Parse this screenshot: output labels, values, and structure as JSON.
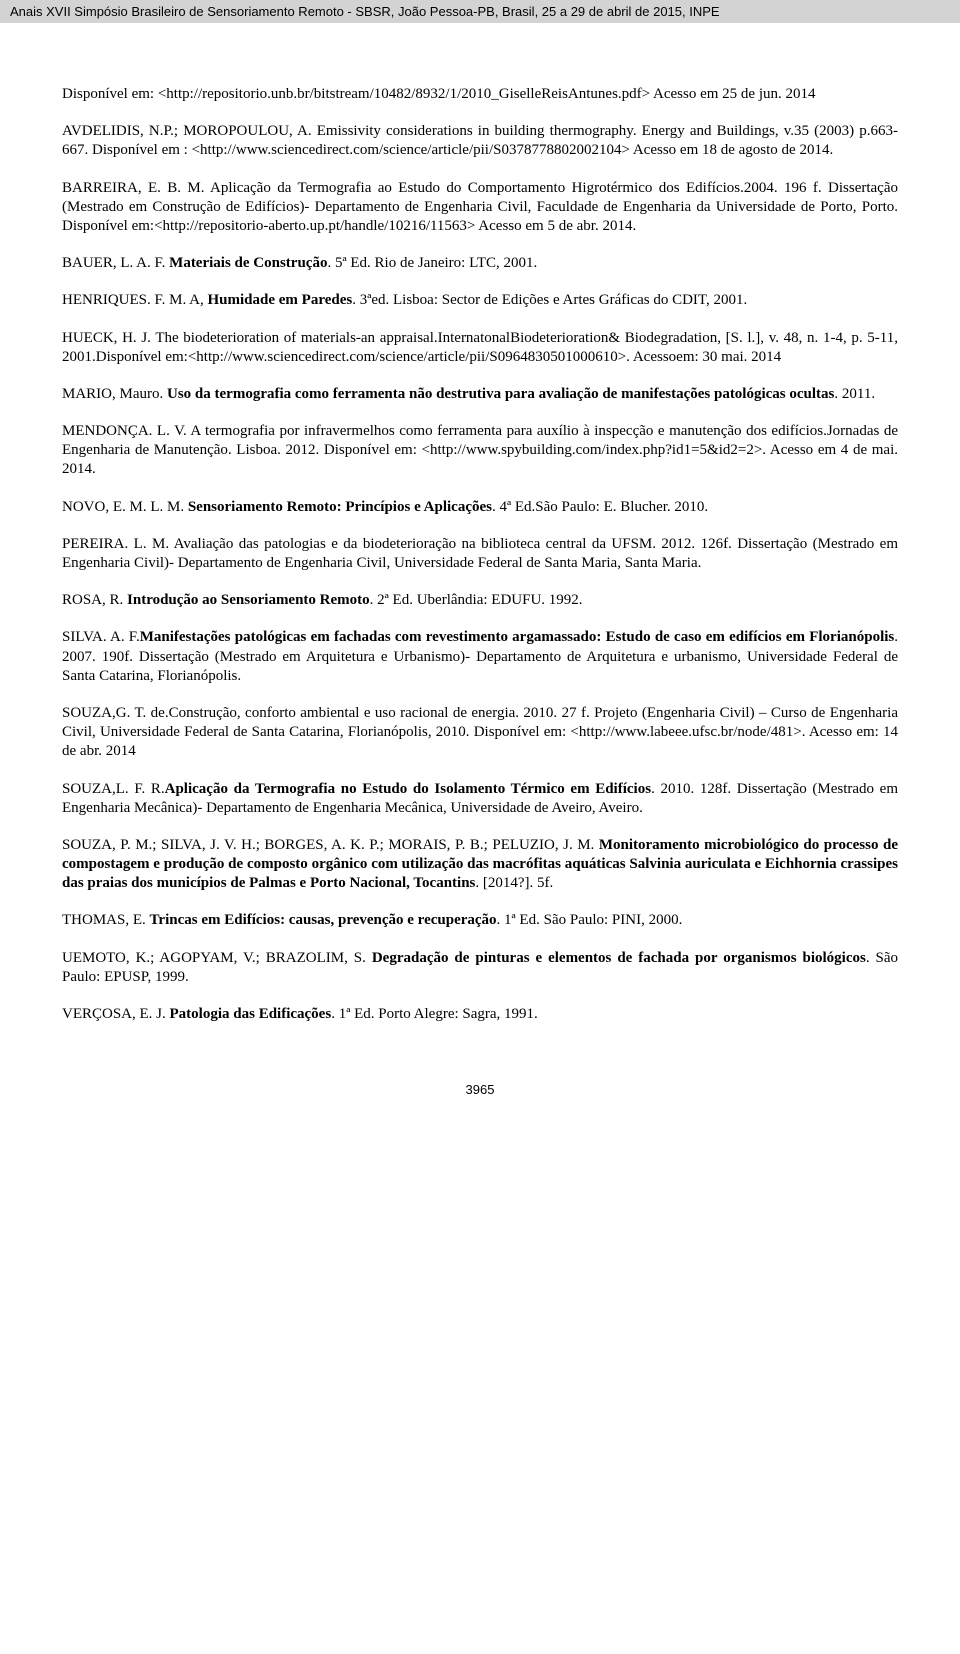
{
  "header": {
    "text": "Anais XVII Simpósio Brasileiro de Sensoriamento Remoto - SBSR, João Pessoa-PB, Brasil, 25 a 29 de abril de 2015, INPE"
  },
  "refs": {
    "r1": {
      "a": "Disponível em: <http://repositorio.unb.br/bitstream/10482/8932/1/2010_GiselleReisAntunes.pdf> Acesso em 25 de jun. 2014"
    },
    "r2": {
      "a": "AVDELIDIS, N.P.; MOROPOULOU, A. Emissivity considerations in building thermography. Energy and Buildings, v.35 (2003) p.663-667. Disponível em : <http://www.sciencedirect.com/science/article/pii/S0378778802002104> Acesso em 18 de agosto de 2014."
    },
    "r3": {
      "a": "BARREIRA, E. B. M. Aplicação da Termografia ao Estudo do Comportamento Higrotérmico dos Edifícios.2004. 196 f. Dissertação (Mestrado em Construção de Edifícios)- Departamento de Engenharia Civil, Faculdade de Engenharia da Universidade de Porto, Porto. Disponível em:<http://repositorio-aberto.up.pt/handle/10216/11563> Acesso em 5 de abr. 2014."
    },
    "r4": {
      "a": "BAUER, L. A. F. ",
      "b": "Materiais de Construção",
      "c": ". 5ª Ed. Rio de Janeiro: LTC, 2001."
    },
    "r5": {
      "a": "HENRIQUES. F. M. A, ",
      "b": "Humidade em Paredes",
      "c": ". 3ªed. Lisboa: Sector de Edições e Artes Gráficas do CDIT, 2001."
    },
    "r6": {
      "a": "HUECK, H. J. The biodeterioration of materials-an appraisal.InternatonalBiodeterioration& Biodegradation, [S. l.], v. 48, n. 1-4, p. 5-11, 2001.Disponível em:<http://www.sciencedirect.com/science/article/pii/S0964830501000610>. Acessoem: 30 mai. 2014"
    },
    "r7": {
      "a": "MARIO, Mauro. ",
      "b": "Uso da termografia como ferramenta não destrutiva para avaliação de manifestações patológicas ocultas",
      "c": ". 2011."
    },
    "r8": {
      "a": "MENDONÇA. L. V. A termografia por infravermelhos como ferramenta para auxílio à inspecção e manutenção dos edifícios.Jornadas de Engenharia de Manutenção. Lisboa. 2012. Disponível em: <http://www.spybuilding.com/index.php?id1=5&id2=2>. Acesso em 4 de mai. 2014."
    },
    "r9": {
      "a": "NOVO, E. M. L. M. ",
      "b": "Sensoriamento Remoto: Princípios e Aplicações",
      "c": ". 4ª Ed.São Paulo: E. Blucher. 2010."
    },
    "r10": {
      "a": "PEREIRA. L. M. Avaliação das patologias e da biodeterioração na biblioteca central da UFSM. 2012. 126f. Dissertação (Mestrado em Engenharia Civil)- Departamento de Engenharia Civil, Universidade Federal de Santa Maria, Santa Maria."
    },
    "r11": {
      "a": "ROSA, R. ",
      "b": "Introdução ao Sensoriamento Remoto",
      "c": ". 2ª Ed. Uberlândia: EDUFU. 1992."
    },
    "r12": {
      "a": "SILVA. A. F.",
      "b": "Manifestações patológicas em fachadas com revestimento argamassado: Estudo de caso em edifícios em Florianópolis",
      "c": ". 2007. 190f. Dissertação (Mestrado em Arquitetura e Urbanismo)- Departamento de Arquitetura e urbanismo, Universidade Federal de Santa Catarina, Florianópolis."
    },
    "r13": {
      "a": "SOUZA,G. T. de.Construção, conforto ambiental e uso racional de energia. 2010. 27 f. Projeto (Engenharia Civil) – Curso de Engenharia Civil, Universidade Federal de Santa Catarina, Florianópolis, 2010. Disponível em: <http://www.labeee.ufsc.br/node/481>. Acesso em: 14 de abr. 2014"
    },
    "r14": {
      "a": "SOUZA,L. F. R.",
      "b": "Aplicação da Termografia no Estudo do Isolamento Térmico em Edifícios",
      "c": ". 2010. 128f. Dissertação (Mestrado em Engenharia Mecânica)- Departamento de Engenharia Mecânica, Universidade de Aveiro, Aveiro."
    },
    "r15": {
      "a": "SOUZA, P. M.; SILVA, J. V. H.; BORGES, A. K. P.; MORAIS, P. B.; PELUZIO, J. M. ",
      "b": "Monitoramento microbiológico do processo de compostagem e produção de composto orgânico com utilização das macrófitas aquáticas Salvinia auriculata e Eichhornia crassipes das praias dos municípios de Palmas e Porto Nacional, Tocantins",
      "c": ". [2014?]. 5f."
    },
    "r16": {
      "a": "THOMAS, E. ",
      "b": "Trincas em Edifícios: causas, prevenção e recuperação",
      "c": ". 1ª Ed. São Paulo: PINI, 2000."
    },
    "r17": {
      "a": "UEMOTO, K.; AGOPYAM, V.; BRAZOLIM, S. ",
      "b": "Degradação de pinturas e elementos de fachada por organismos biológicos",
      "c": ". São Paulo: EPUSP, 1999."
    },
    "r18": {
      "a": "VERÇOSA, E. J. ",
      "b": "Patologia das Edificações",
      "c": ". 1ª Ed. Porto Alegre: Sagra, 1991."
    }
  },
  "footer": {
    "page_number": "3965"
  }
}
